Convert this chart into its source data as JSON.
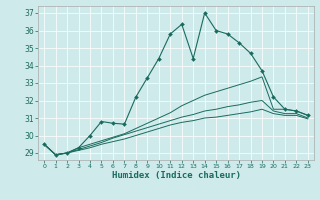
{
  "xlabel": "Humidex (Indice chaleur)",
  "bg_color": "#ceeaea",
  "line_color": "#1a6b5e",
  "grid_color": "#ffffff",
  "xlim": [
    -0.5,
    23.5
  ],
  "ylim": [
    28.6,
    37.4
  ],
  "yticks": [
    29,
    30,
    31,
    32,
    33,
    34,
    35,
    36,
    37
  ],
  "xticks": [
    0,
    1,
    2,
    3,
    4,
    5,
    6,
    7,
    8,
    9,
    10,
    11,
    12,
    13,
    14,
    15,
    16,
    17,
    18,
    19,
    20,
    21,
    22,
    23
  ],
  "series1_x": [
    0,
    1,
    2,
    3,
    4,
    5,
    6,
    7,
    8,
    9,
    10,
    11,
    12,
    13,
    14,
    15,
    16,
    17,
    18,
    19,
    20,
    21,
    22,
    23
  ],
  "series1_y": [
    29.5,
    28.9,
    29.0,
    29.3,
    30.0,
    30.8,
    30.7,
    30.65,
    32.2,
    33.3,
    34.4,
    35.8,
    36.35,
    34.4,
    37.0,
    36.0,
    35.8,
    35.3,
    34.7,
    33.7,
    32.2,
    31.5,
    31.4,
    31.15
  ],
  "series2_x": [
    0,
    1,
    2,
    3,
    4,
    5,
    6,
    7,
    8,
    9,
    10,
    11,
    12,
    13,
    14,
    15,
    16,
    17,
    18,
    19,
    20,
    21,
    22,
    23
  ],
  "series2_y": [
    29.5,
    28.9,
    29.0,
    29.3,
    29.5,
    29.7,
    29.9,
    30.1,
    30.4,
    30.7,
    31.0,
    31.3,
    31.7,
    32.0,
    32.3,
    32.5,
    32.7,
    32.9,
    33.1,
    33.35,
    31.5,
    31.5,
    31.4,
    31.15
  ],
  "series3_x": [
    0,
    1,
    2,
    3,
    4,
    5,
    6,
    7,
    8,
    9,
    10,
    11,
    12,
    13,
    14,
    15,
    16,
    17,
    18,
    19,
    20,
    21,
    22,
    23
  ],
  "series3_y": [
    29.5,
    28.9,
    29.0,
    29.2,
    29.4,
    29.6,
    29.85,
    30.05,
    30.25,
    30.45,
    30.65,
    30.85,
    31.05,
    31.2,
    31.4,
    31.5,
    31.65,
    31.75,
    31.9,
    32.0,
    31.4,
    31.25,
    31.25,
    31.0
  ],
  "series4_x": [
    0,
    1,
    2,
    3,
    4,
    5,
    6,
    7,
    8,
    9,
    10,
    11,
    12,
    13,
    14,
    15,
    16,
    17,
    18,
    19,
    20,
    21,
    22,
    23
  ],
  "series4_y": [
    29.5,
    28.9,
    29.0,
    29.15,
    29.3,
    29.5,
    29.65,
    29.8,
    30.0,
    30.2,
    30.4,
    30.6,
    30.75,
    30.85,
    31.0,
    31.05,
    31.15,
    31.25,
    31.35,
    31.5,
    31.25,
    31.15,
    31.15,
    30.95
  ]
}
